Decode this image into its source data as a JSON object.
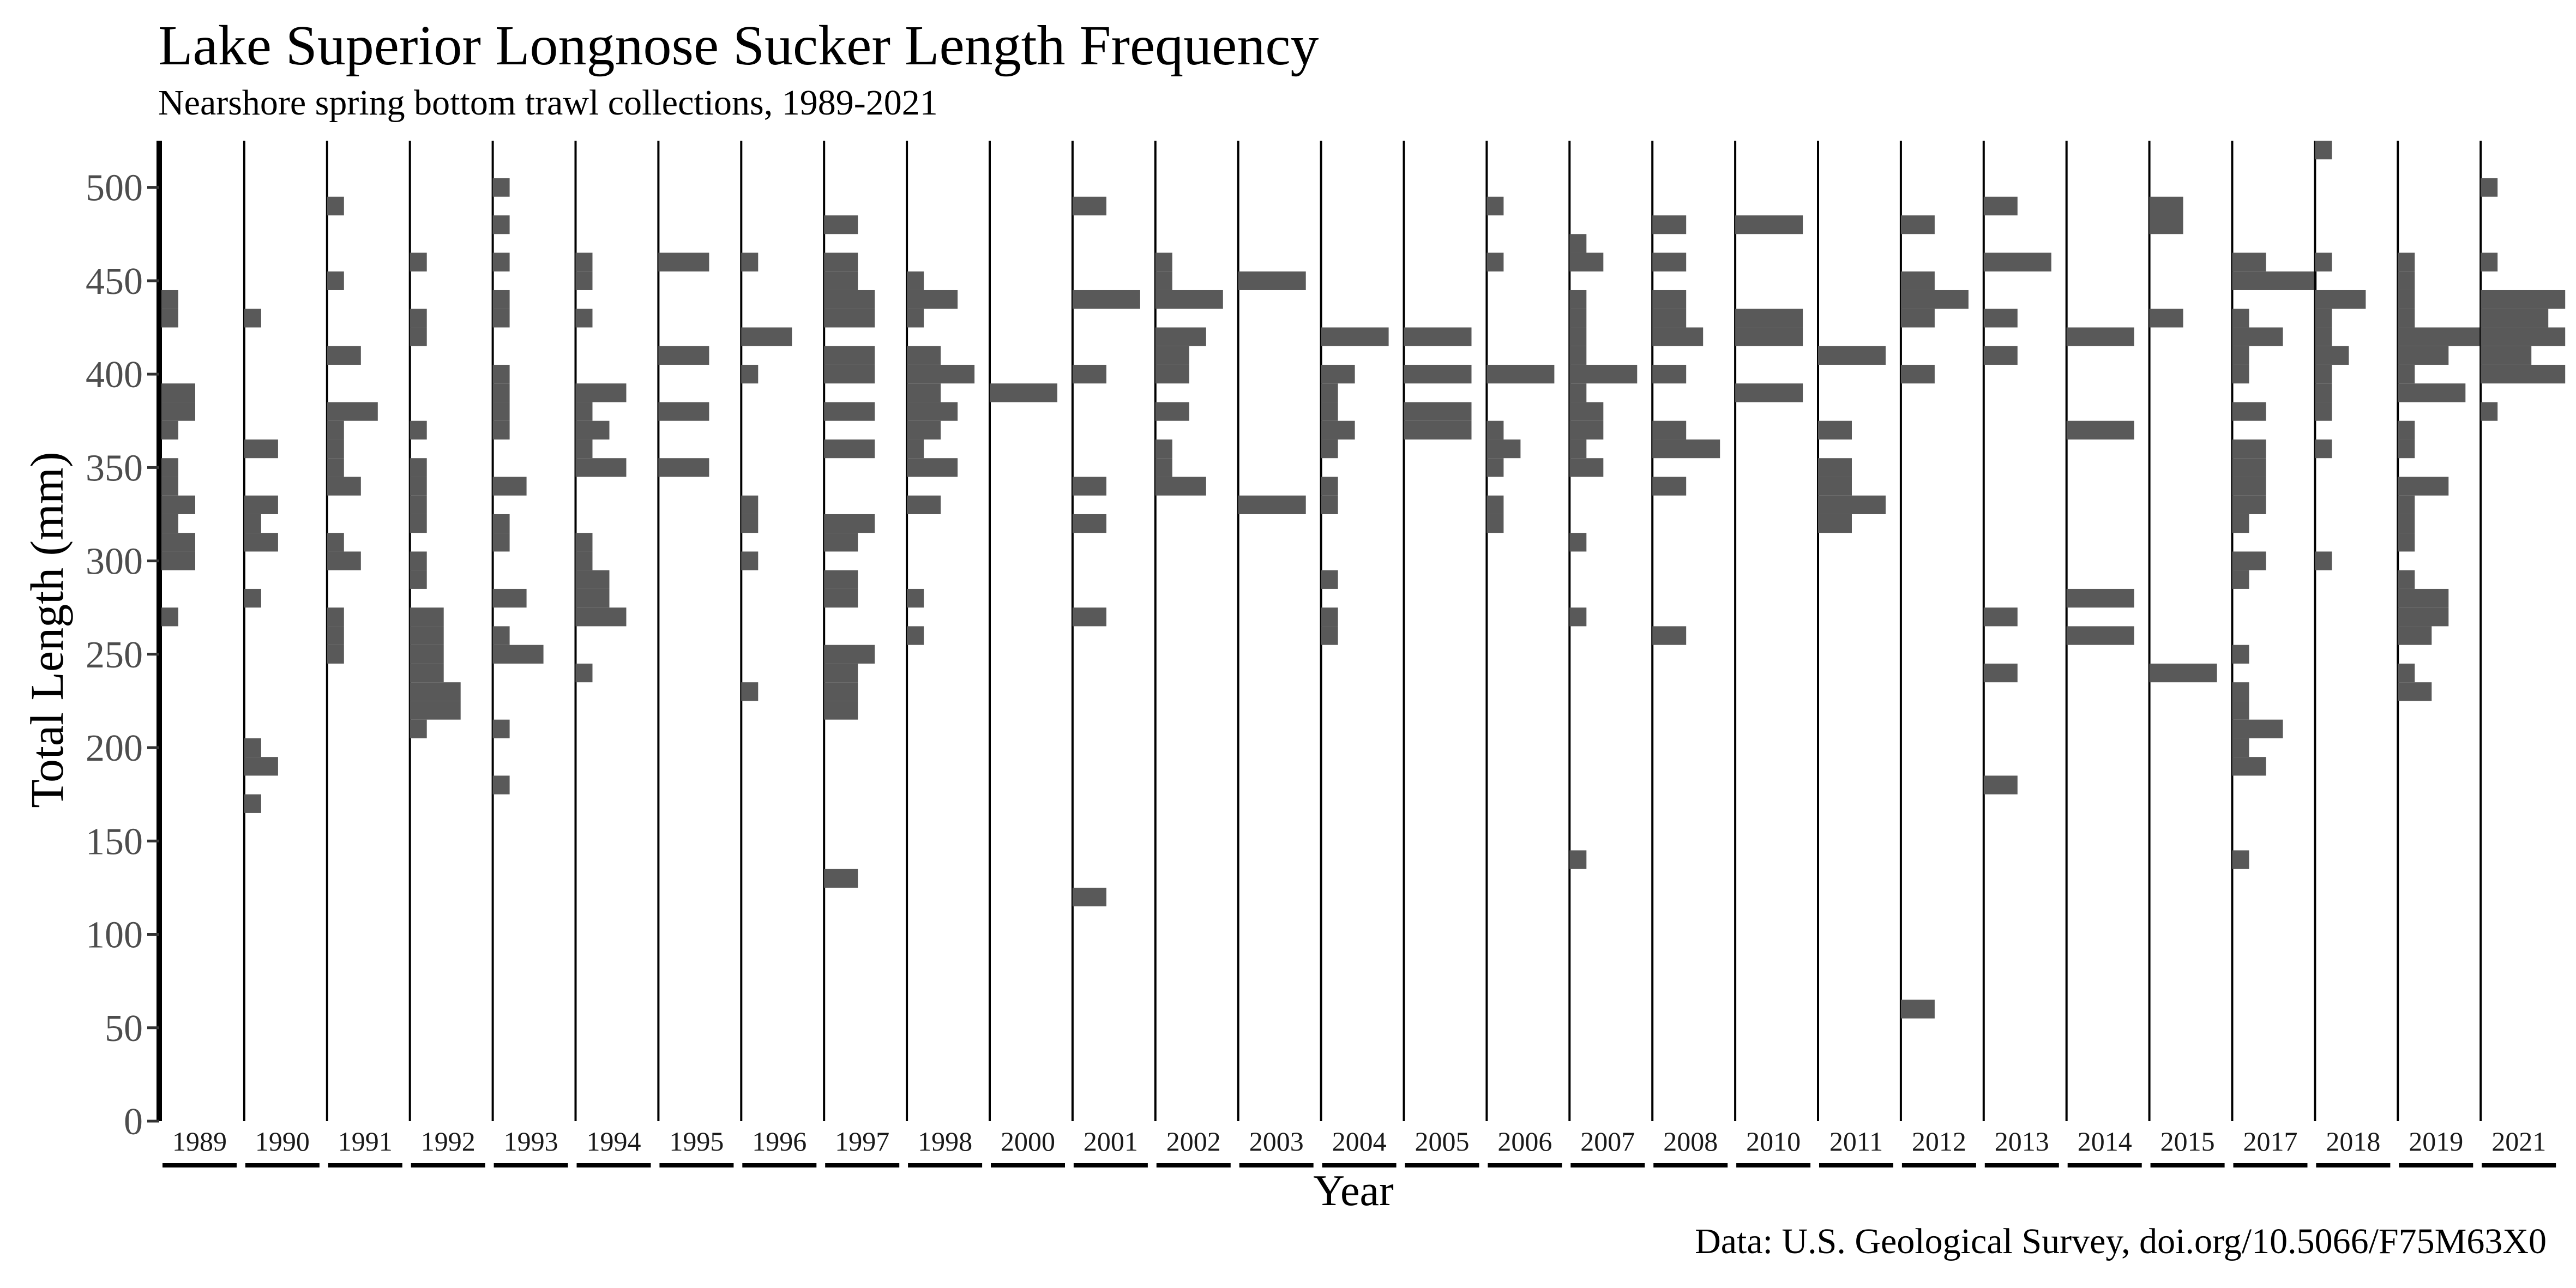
{
  "chart_data": {
    "type": "histogram",
    "title": "Lake Superior Longnose Sucker Length Frequency",
    "subtitle": "Nearshore spring bottom trawl collections, 1989-2021",
    "xlabel": "Year",
    "ylabel": "Total Length (mm)",
    "caption": "Data: U.S. Geological Survey, doi.org/10.5066/F75M63X0",
    "ylim": [
      0,
      525
    ],
    "yticks": [
      0,
      50,
      100,
      150,
      200,
      250,
      300,
      350,
      400,
      450,
      500
    ],
    "bin_width_mm": 10,
    "bar_color": "#595959",
    "facets": [
      {
        "year": "1989",
        "bins": [
          [
            270,
            1
          ],
          [
            300,
            2
          ],
          [
            310,
            2
          ],
          [
            320,
            1
          ],
          [
            330,
            2
          ],
          [
            340,
            1
          ],
          [
            350,
            1
          ],
          [
            370,
            1
          ],
          [
            380,
            2
          ],
          [
            390,
            2
          ],
          [
            430,
            1
          ],
          [
            440,
            1
          ]
        ]
      },
      {
        "year": "1990",
        "bins": [
          [
            170,
            1
          ],
          [
            190,
            2
          ],
          [
            200,
            1
          ],
          [
            280,
            1
          ],
          [
            310,
            2
          ],
          [
            320,
            1
          ],
          [
            330,
            2
          ],
          [
            360,
            2
          ],
          [
            430,
            1
          ]
        ]
      },
      {
        "year": "1991",
        "bins": [
          [
            250,
            1
          ],
          [
            260,
            1
          ],
          [
            270,
            1
          ],
          [
            300,
            2
          ],
          [
            310,
            1
          ],
          [
            340,
            2
          ],
          [
            350,
            1
          ],
          [
            360,
            1
          ],
          [
            370,
            1
          ],
          [
            380,
            3
          ],
          [
            410,
            2
          ],
          [
            450,
            1
          ],
          [
            490,
            1
          ]
        ]
      },
      {
        "year": "1992",
        "bins": [
          [
            210,
            1
          ],
          [
            220,
            3
          ],
          [
            230,
            3
          ],
          [
            240,
            2
          ],
          [
            250,
            2
          ],
          [
            260,
            2
          ],
          [
            270,
            2
          ],
          [
            290,
            1
          ],
          [
            300,
            1
          ],
          [
            320,
            1
          ],
          [
            330,
            1
          ],
          [
            340,
            1
          ],
          [
            350,
            1
          ],
          [
            370,
            1
          ],
          [
            420,
            1
          ],
          [
            430,
            1
          ],
          [
            460,
            1
          ]
        ]
      },
      {
        "year": "1993",
        "bins": [
          [
            180,
            1
          ],
          [
            210,
            1
          ],
          [
            250,
            3
          ],
          [
            260,
            1
          ],
          [
            280,
            2
          ],
          [
            310,
            1
          ],
          [
            320,
            1
          ],
          [
            340,
            2
          ],
          [
            370,
            1
          ],
          [
            380,
            1
          ],
          [
            390,
            1
          ],
          [
            400,
            1
          ],
          [
            430,
            1
          ],
          [
            440,
            1
          ],
          [
            460,
            1
          ],
          [
            480,
            1
          ],
          [
            500,
            1
          ]
        ]
      },
      {
        "year": "1994",
        "bins": [
          [
            240,
            1
          ],
          [
            270,
            3
          ],
          [
            280,
            2
          ],
          [
            290,
            2
          ],
          [
            300,
            1
          ],
          [
            310,
            1
          ],
          [
            350,
            3
          ],
          [
            360,
            1
          ],
          [
            370,
            2
          ],
          [
            380,
            1
          ],
          [
            390,
            3
          ],
          [
            430,
            1
          ],
          [
            450,
            1
          ],
          [
            460,
            1
          ]
        ]
      },
      {
        "year": "1995",
        "bins": [
          [
            350,
            3
          ],
          [
            380,
            3
          ],
          [
            410,
            3
          ],
          [
            460,
            3
          ]
        ]
      },
      {
        "year": "1996",
        "bins": [
          [
            230,
            1
          ],
          [
            300,
            1
          ],
          [
            320,
            1
          ],
          [
            330,
            1
          ],
          [
            400,
            1
          ],
          [
            420,
            3
          ],
          [
            460,
            1
          ]
        ]
      },
      {
        "year": "1997",
        "bins": [
          [
            130,
            2
          ],
          [
            220,
            2
          ],
          [
            230,
            2
          ],
          [
            240,
            2
          ],
          [
            250,
            3
          ],
          [
            280,
            2
          ],
          [
            290,
            2
          ],
          [
            310,
            2
          ],
          [
            320,
            3
          ],
          [
            360,
            3
          ],
          [
            380,
            3
          ],
          [
            400,
            3
          ],
          [
            410,
            3
          ],
          [
            430,
            3
          ],
          [
            440,
            3
          ],
          [
            450,
            2
          ],
          [
            460,
            2
          ],
          [
            480,
            2
          ]
        ]
      },
      {
        "year": "1998",
        "bins": [
          [
            260,
            1
          ],
          [
            280,
            1
          ],
          [
            330,
            2
          ],
          [
            350,
            3
          ],
          [
            360,
            1
          ],
          [
            370,
            2
          ],
          [
            380,
            3
          ],
          [
            390,
            2
          ],
          [
            400,
            4
          ],
          [
            410,
            2
          ],
          [
            430,
            1
          ],
          [
            440,
            3
          ],
          [
            450,
            1
          ]
        ]
      },
      {
        "year": "2000",
        "bins": [
          [
            390,
            4
          ]
        ]
      },
      {
        "year": "2001",
        "bins": [
          [
            120,
            2
          ],
          [
            270,
            2
          ],
          [
            320,
            2
          ],
          [
            340,
            2
          ],
          [
            400,
            2
          ],
          [
            440,
            4
          ],
          [
            490,
            2
          ]
        ]
      },
      {
        "year": "2002",
        "bins": [
          [
            340,
            3
          ],
          [
            350,
            1
          ],
          [
            360,
            1
          ],
          [
            380,
            2
          ],
          [
            400,
            2
          ],
          [
            410,
            2
          ],
          [
            420,
            3
          ],
          [
            440,
            4
          ],
          [
            450,
            1
          ],
          [
            460,
            1
          ]
        ]
      },
      {
        "year": "2003",
        "bins": [
          [
            330,
            4
          ],
          [
            450,
            4
          ]
        ]
      },
      {
        "year": "2004",
        "bins": [
          [
            260,
            1
          ],
          [
            270,
            1
          ],
          [
            290,
            1
          ],
          [
            330,
            1
          ],
          [
            340,
            1
          ],
          [
            360,
            1
          ],
          [
            370,
            2
          ],
          [
            380,
            1
          ],
          [
            390,
            1
          ],
          [
            400,
            2
          ],
          [
            420,
            4
          ]
        ]
      },
      {
        "year": "2005",
        "bins": [
          [
            370,
            4
          ],
          [
            380,
            4
          ],
          [
            400,
            4
          ],
          [
            420,
            4
          ]
        ]
      },
      {
        "year": "2006",
        "bins": [
          [
            320,
            1
          ],
          [
            330,
            1
          ],
          [
            350,
            1
          ],
          [
            360,
            2
          ],
          [
            370,
            1
          ],
          [
            400,
            4
          ],
          [
            460,
            1
          ],
          [
            490,
            1
          ]
        ]
      },
      {
        "year": "2007",
        "bins": [
          [
            140,
            1
          ],
          [
            270,
            1
          ],
          [
            310,
            1
          ],
          [
            350,
            2
          ],
          [
            360,
            1
          ],
          [
            370,
            2
          ],
          [
            380,
            2
          ],
          [
            390,
            1
          ],
          [
            400,
            4
          ],
          [
            410,
            1
          ],
          [
            420,
            1
          ],
          [
            430,
            1
          ],
          [
            440,
            1
          ],
          [
            460,
            2
          ],
          [
            470,
            1
          ]
        ]
      },
      {
        "year": "2008",
        "bins": [
          [
            260,
            2
          ],
          [
            340,
            2
          ],
          [
            360,
            4
          ],
          [
            370,
            2
          ],
          [
            400,
            2
          ],
          [
            420,
            3
          ],
          [
            430,
            2
          ],
          [
            440,
            2
          ],
          [
            460,
            2
          ],
          [
            480,
            2
          ]
        ]
      },
      {
        "year": "2010",
        "bins": [
          [
            390,
            4
          ],
          [
            420,
            4
          ],
          [
            430,
            4
          ],
          [
            480,
            4
          ]
        ]
      },
      {
        "year": "2011",
        "bins": [
          [
            320,
            2
          ],
          [
            330,
            4
          ],
          [
            340,
            2
          ],
          [
            350,
            2
          ],
          [
            370,
            2
          ],
          [
            410,
            4
          ]
        ]
      },
      {
        "year": "2012",
        "bins": [
          [
            60,
            2
          ],
          [
            400,
            2
          ],
          [
            430,
            2
          ],
          [
            440,
            4
          ],
          [
            450,
            2
          ],
          [
            480,
            2
          ]
        ]
      },
      {
        "year": "2013",
        "bins": [
          [
            180,
            2
          ],
          [
            240,
            2
          ],
          [
            270,
            2
          ],
          [
            410,
            2
          ],
          [
            430,
            2
          ],
          [
            460,
            4
          ],
          [
            490,
            2
          ]
        ]
      },
      {
        "year": "2014",
        "bins": [
          [
            260,
            4
          ],
          [
            280,
            4
          ],
          [
            370,
            4
          ],
          [
            420,
            4
          ]
        ]
      },
      {
        "year": "2015",
        "bins": [
          [
            240,
            4
          ],
          [
            430,
            2
          ],
          [
            480,
            2
          ],
          [
            490,
            2
          ]
        ]
      },
      {
        "year": "2017",
        "bins": [
          [
            140,
            1
          ],
          [
            190,
            2
          ],
          [
            200,
            1
          ],
          [
            210,
            3
          ],
          [
            220,
            1
          ],
          [
            230,
            1
          ],
          [
            250,
            1
          ],
          [
            290,
            1
          ],
          [
            300,
            2
          ],
          [
            320,
            1
          ],
          [
            330,
            2
          ],
          [
            340,
            2
          ],
          [
            350,
            2
          ],
          [
            360,
            2
          ],
          [
            380,
            2
          ],
          [
            400,
            1
          ],
          [
            410,
            1
          ],
          [
            420,
            3
          ],
          [
            430,
            1
          ],
          [
            450,
            5
          ],
          [
            460,
            2
          ]
        ]
      },
      {
        "year": "2018",
        "bins": [
          [
            300,
            1
          ],
          [
            360,
            1
          ],
          [
            380,
            1
          ],
          [
            390,
            1
          ],
          [
            400,
            1
          ],
          [
            410,
            2
          ],
          [
            420,
            1
          ],
          [
            430,
            1
          ],
          [
            440,
            3
          ],
          [
            460,
            1
          ],
          [
            520,
            1
          ]
        ]
      },
      {
        "year": "2019",
        "bins": [
          [
            230,
            2
          ],
          [
            240,
            1
          ],
          [
            260,
            2
          ],
          [
            270,
            3
          ],
          [
            280,
            3
          ],
          [
            290,
            1
          ],
          [
            310,
            1
          ],
          [
            320,
            1
          ],
          [
            330,
            1
          ],
          [
            340,
            3
          ],
          [
            360,
            1
          ],
          [
            370,
            1
          ],
          [
            390,
            4
          ],
          [
            400,
            1
          ],
          [
            410,
            3
          ],
          [
            420,
            5
          ],
          [
            430,
            1
          ],
          [
            440,
            1
          ],
          [
            450,
            1
          ],
          [
            460,
            1
          ]
        ]
      },
      {
        "year": "2021",
        "bins": [
          [
            380,
            1
          ],
          [
            400,
            5
          ],
          [
            410,
            3
          ],
          [
            420,
            5
          ],
          [
            430,
            4
          ],
          [
            440,
            5
          ],
          [
            460,
            1
          ],
          [
            500,
            1
          ]
        ]
      }
    ]
  }
}
